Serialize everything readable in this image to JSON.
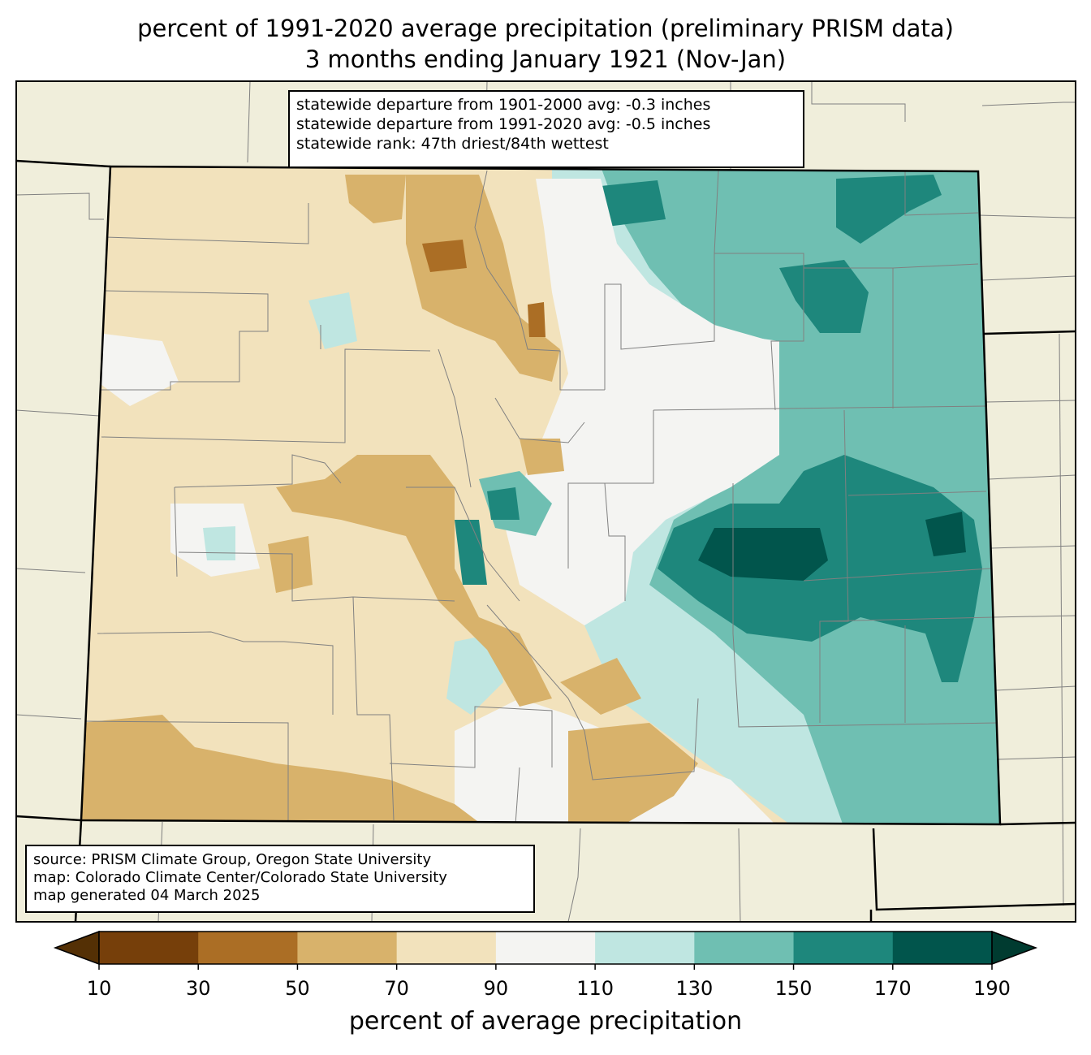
{
  "title": {
    "line1": "percent of 1991-2020 average precipitation (preliminary PRISM data)",
    "line2": "3 months ending January 1921 (Nov-Jan)"
  },
  "stats_box": {
    "line1": "statewide departure from 1901-2000 avg: -0.3 inches",
    "line2": "statewide departure from 1991-2020 avg: -0.5 inches",
    "line3": "statewide rank: 47th driest/84th wettest"
  },
  "source_box": {
    "line1": "source: PRISM Climate Group, Oregon State University",
    "line2": "map: Colorado Climate Center/Colorado State University",
    "line3": "map generated 04 March 2025"
  },
  "colorbar": {
    "label": "percent of average precipitation",
    "ticks": [
      "10",
      "30",
      "50",
      "70",
      "90",
      "110",
      "130",
      "150",
      "170",
      "190"
    ],
    "colors": [
      "#543005",
      "#763f0a",
      "#ab6e25",
      "#d8b26b",
      "#f2e2bc",
      "#f4f4f2",
      "#bfe6e1",
      "#6fbfb2",
      "#1e877c",
      "#01554c",
      "#003b30"
    ]
  },
  "map_colors": {
    "background": "#f0eedb",
    "county_lines": "#808080",
    "state_lines": "#000000"
  }
}
